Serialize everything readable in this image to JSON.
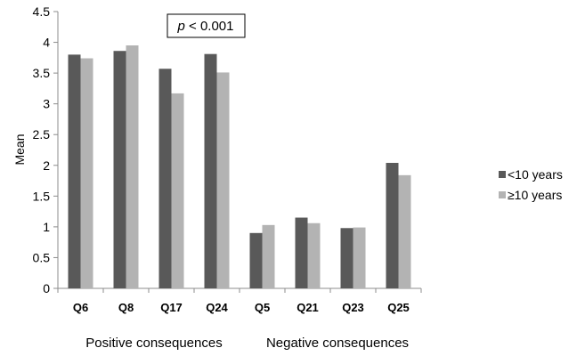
{
  "chart_data": {
    "type": "bar",
    "ylabel": "Mean",
    "ylim": [
      0,
      4.5
    ],
    "yticks": [
      "0",
      "0.5",
      "1",
      "1.5",
      "2",
      "2.5",
      "3",
      "3.5",
      "4",
      "4.5"
    ],
    "categories": [
      "Q6",
      "Q8",
      "Q17",
      "Q24",
      "Q5",
      "Q21",
      "Q23",
      "Q25"
    ],
    "series": [
      {
        "name": "<10 years",
        "color": "#595959",
        "values": [
          3.8,
          3.86,
          3.57,
          3.81,
          0.9,
          1.15,
          0.98,
          2.04
        ]
      },
      {
        "name": "≥10 years",
        "color": "#b3b3b3",
        "values": [
          3.74,
          3.95,
          3.17,
          3.51,
          1.03,
          1.06,
          0.99,
          1.84
        ]
      }
    ],
    "groups": [
      {
        "label": "Positive consequences",
        "categories": [
          "Q6",
          "Q8",
          "Q17",
          "Q24"
        ]
      },
      {
        "label": "Negative consequences",
        "categories": [
          "Q5",
          "Q21",
          "Q23",
          "Q25"
        ]
      }
    ],
    "annotation": {
      "italic": "p",
      "text": " < 0.001"
    },
    "legend": "right",
    "grid": false
  }
}
